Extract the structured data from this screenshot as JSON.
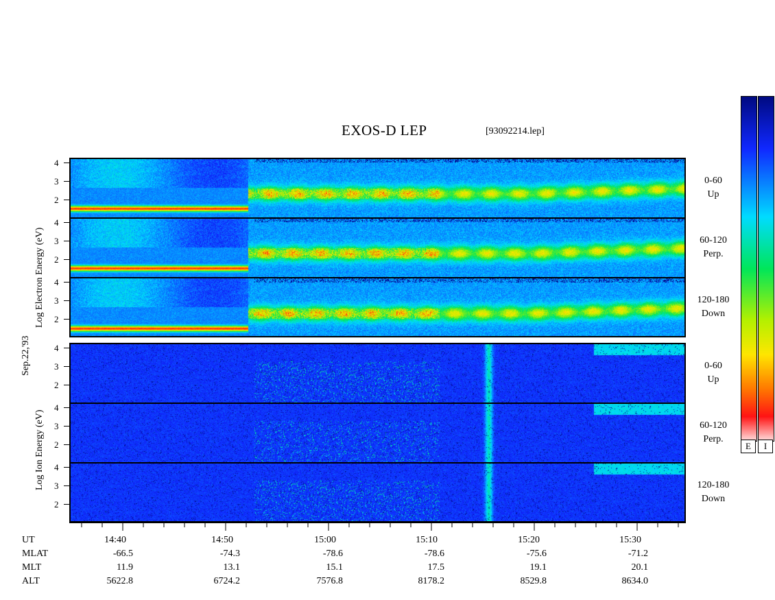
{
  "title": "EXOS-D LEP",
  "filename": "[93092214.lep]",
  "date_label": "Sep.22,'93",
  "electron_ylabel": "Log  Electron  Energy (eV)",
  "ion_ylabel": "Log  Ion  Energy (eV)",
  "panels": [
    {
      "group": "electron",
      "label1": "0-60",
      "label2": "Up",
      "ticks": [
        "4",
        "3",
        "2"
      ]
    },
    {
      "group": "electron",
      "label1": "60-120",
      "label2": "Perp.",
      "ticks": [
        "4",
        "3",
        "2"
      ]
    },
    {
      "group": "electron",
      "label1": "120-180",
      "label2": "Down",
      "ticks": [
        "4",
        "3",
        "2"
      ]
    },
    {
      "group": "ion",
      "label1": "0-60",
      "label2": "Up",
      "ticks": [
        "4",
        "3",
        "2"
      ]
    },
    {
      "group": "ion",
      "label1": "60-120",
      "label2": "Perp.",
      "ticks": [
        "4",
        "3",
        "2"
      ]
    },
    {
      "group": "ion",
      "label1": "120-180",
      "label2": "Down",
      "ticks": [
        "4",
        "3",
        "2"
      ]
    }
  ],
  "rows": [
    {
      "name": "UT",
      "values": [
        "14:40",
        "14:50",
        "15:00",
        "15:10",
        "15:20",
        "15:30"
      ]
    },
    {
      "name": "MLAT",
      "values": [
        "-66.5",
        "-74.3",
        "-78.6",
        "-78.6",
        "-75.6",
        "-71.2"
      ]
    },
    {
      "name": "MLT",
      "values": [
        "11.9",
        "13.1",
        "15.1",
        "17.5",
        "19.1",
        "20.1"
      ]
    },
    {
      "name": "ALT",
      "values": [
        "5622.8",
        "6724.2",
        "7576.8",
        "8178.2",
        "8529.8",
        "8634.0"
      ]
    }
  ],
  "colorbar": {
    "electron_label": "E",
    "ion_label": "I"
  },
  "colors": {
    "dark_blue": "#000a8a",
    "blue": "#1040ff",
    "cyan": "#00ffff",
    "green": "#00e060",
    "yellow": "#ffff00",
    "orange": "#ff9900",
    "red": "#ff1010",
    "pink": "#ffe0e0"
  },
  "chart_data": {
    "type": "heatmap",
    "title": "EXOS-D LEP",
    "x_axis": "UT",
    "x_ticks": [
      "14:40",
      "14:50",
      "15:00",
      "15:10",
      "15:20",
      "15:30"
    ],
    "y_axis": "Log Energy (eV)",
    "y_ticks": [
      2,
      3,
      4
    ],
    "series": [
      {
        "name": "Electron 0-60 Up"
      },
      {
        "name": "Electron 60-120 Perp."
      },
      {
        "name": "Electron 120-180 Down"
      },
      {
        "name": "Ion 0-60 Up"
      },
      {
        "name": "Ion 60-120 Perp."
      },
      {
        "name": "Ion 120-180 Down"
      }
    ]
  }
}
